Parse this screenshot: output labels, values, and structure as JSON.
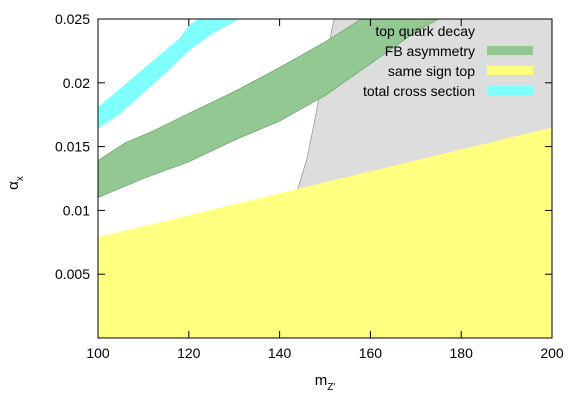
{
  "chart_data": {
    "type": "area",
    "xlabel": "m",
    "xlabel_sub": "Z'",
    "ylabel": "α",
    "ylabel_sub": "x",
    "xlim": [
      100,
      200
    ],
    "ylim": [
      0,
      0.025
    ],
    "xticks": [
      100,
      120,
      140,
      160,
      180,
      200
    ],
    "xtick_labels": [
      "100",
      "120",
      "140",
      "160",
      "180",
      "200"
    ],
    "yticks": [
      0.005,
      0.01,
      0.015,
      0.02,
      0.025
    ],
    "ytick_labels": [
      "0.005",
      "0.01",
      "0.015",
      "0.02",
      "0.025"
    ],
    "grid": false,
    "legend_position": "top-right",
    "series": [
      {
        "name": "top quark decay",
        "kind": "region-right-of-curve",
        "color": "#dddddd",
        "boundary": [
          [
            100,
            0.0018
          ],
          [
            110,
            0.0022
          ],
          [
            120,
            0.003
          ],
          [
            128,
            0.0042
          ],
          [
            134,
            0.0058
          ],
          [
            139,
            0.0078
          ],
          [
            143,
            0.0105
          ],
          [
            146,
            0.014
          ],
          [
            148,
            0.0175
          ],
          [
            150,
            0.0215
          ],
          [
            152,
            0.025
          ]
        ]
      },
      {
        "name": "FB asymmetry",
        "kind": "band",
        "color": "#93c893",
        "lower": [
          [
            100,
            0.011
          ],
          [
            110,
            0.0125
          ],
          [
            120,
            0.0138
          ],
          [
            130,
            0.0155
          ],
          [
            140,
            0.017
          ],
          [
            150,
            0.019
          ],
          [
            160,
            0.0215
          ],
          [
            170,
            0.024
          ],
          [
            175,
            0.025
          ]
        ],
        "upper": [
          [
            100,
            0.0139
          ],
          [
            106,
            0.0153
          ],
          [
            112,
            0.0162
          ],
          [
            120,
            0.0176
          ],
          [
            130,
            0.0193
          ],
          [
            140,
            0.0212
          ],
          [
            150,
            0.0232
          ],
          [
            158,
            0.025
          ]
        ]
      },
      {
        "name": "same sign top",
        "kind": "below-curve",
        "color": "#ffff80",
        "upper": [
          [
            100,
            0.0079
          ],
          [
            200,
            0.0165
          ]
        ]
      },
      {
        "name": "total cross section",
        "kind": "band",
        "color": "#80ffff",
        "lower": [
          [
            100,
            0.0164
          ],
          [
            105,
            0.0176
          ],
          [
            110,
            0.0192
          ],
          [
            115,
            0.0208
          ],
          [
            120,
            0.0225
          ],
          [
            125,
            0.0238
          ],
          [
            130,
            0.0248
          ],
          [
            131,
            0.025
          ]
        ],
        "upper": [
          [
            100,
            0.0181
          ],
          [
            103,
            0.019
          ],
          [
            108,
            0.0205
          ],
          [
            113,
            0.022
          ],
          [
            118,
            0.0235
          ],
          [
            120,
            0.0245
          ],
          [
            122,
            0.025
          ]
        ]
      }
    ]
  }
}
